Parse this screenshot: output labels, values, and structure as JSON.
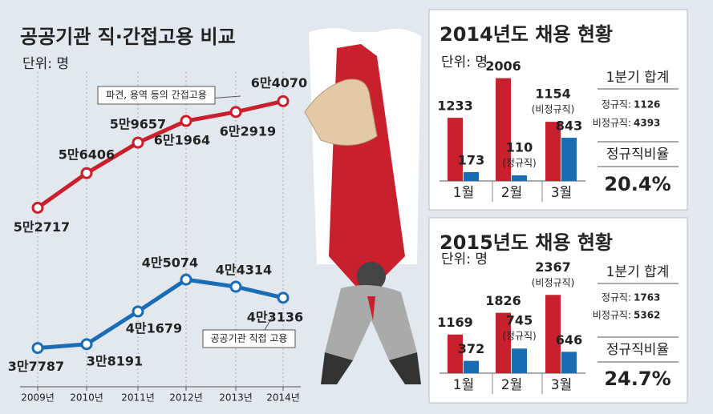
{
  "chart_data": [
    {
      "type": "line",
      "title": "공공기관 직·간접고용 비교",
      "unit": "단위: 명",
      "categories": [
        "2009년",
        "2010년",
        "2011년",
        "2012년",
        "2013년",
        "2014년"
      ],
      "ylim": [
        34000,
        67000
      ],
      "series": [
        {
          "name": "파견, 용역 등의 간접고용",
          "color": "#c8202c",
          "values": [
            52717,
            56406,
            59657,
            61964,
            62919,
            64070
          ],
          "value_labels": [
            "5만2717",
            "5만6406",
            "5만9657",
            "6만1964",
            "6만2919",
            "6만4070"
          ]
        },
        {
          "name": "공공기관 직접 고용",
          "color": "#1a6db5",
          "values": [
            37787,
            38191,
            41679,
            45074,
            44314,
            43136
          ],
          "value_labels": [
            "3만7787",
            "3만8191",
            "4만1679",
            "4만5074",
            "4만4314",
            "4만3136"
          ]
        }
      ]
    },
    {
      "type": "bar",
      "title": "2014년도 채용 현황",
      "unit": "단위: 명",
      "categories": [
        "1월",
        "2월",
        "3월"
      ],
      "ylim": [
        0,
        2000
      ],
      "series": [
        {
          "name": "(비정규직)",
          "color": "#c8202c",
          "values": [
            1233,
            2006,
            1154
          ]
        },
        {
          "name": "(정규직)",
          "color": "#1a6db5",
          "values": [
            173,
            110,
            843
          ]
        }
      ],
      "summary": {
        "title": "1분기 합계",
        "rows": [
          {
            "label": "정규직:",
            "value": 1126
          },
          {
            "label": "비정규직:",
            "value": 4393
          }
        ],
        "ratio_title": "정규직비율",
        "ratio": "20.4%"
      }
    },
    {
      "type": "bar",
      "title": "2015년도 채용 현황",
      "unit": "단위: 명",
      "categories": [
        "1월",
        "2월",
        "3월"
      ],
      "ylim": [
        0,
        3100
      ],
      "series": [
        {
          "name": "(비정규직)",
          "color": "#c8202c",
          "values": [
            1169,
            1826,
            2367
          ]
        },
        {
          "name": "(정규직)",
          "color": "#1a6db5",
          "values": [
            372,
            745,
            646
          ]
        }
      ],
      "summary": {
        "title": "1분기 합계",
        "rows": [
          {
            "label": "정규직:",
            "value": 1763
          },
          {
            "label": "비정규직:",
            "value": 5362
          }
        ],
        "ratio_title": "정규직비율",
        "ratio": "24.7%"
      }
    }
  ]
}
